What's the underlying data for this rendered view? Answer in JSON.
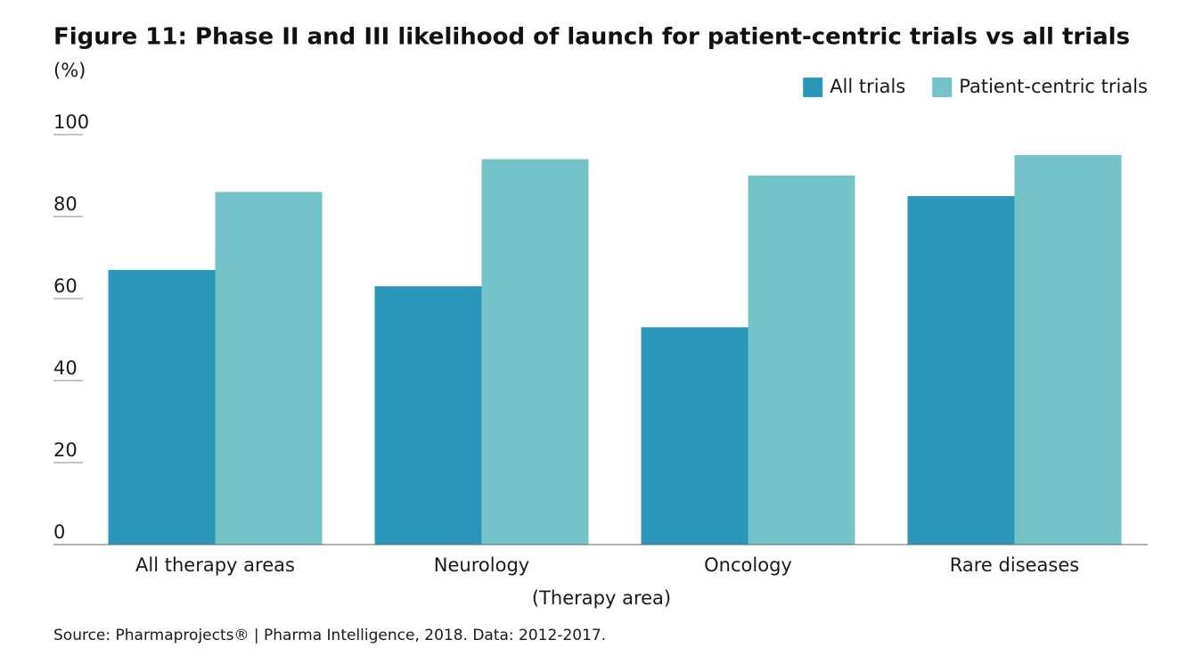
{
  "chart_data": {
    "type": "bar",
    "title": "Figure 11: Phase II and III likelihood of launch for patient-centric trials vs all trials",
    "y_label": "(%)",
    "x_label": "(Therapy area)",
    "source": "Source: Pharmaprojects® | Pharma Intelligence, 2018. Data: 2012-2017.",
    "categories": [
      "All therapy areas",
      "Neurology",
      "Oncology",
      "Rare diseases"
    ],
    "series": [
      {
        "name": "All trials",
        "color": "#2a98bb",
        "values": [
          67,
          63,
          53,
          85
        ]
      },
      {
        "name": "Patient-centric trials",
        "color": "#74c3c9",
        "values": [
          86,
          94,
          90,
          95
        ]
      }
    ],
    "ylim": [
      0,
      100
    ],
    "yticks": [
      0,
      20,
      40,
      60,
      80,
      100
    ],
    "legend": "top-right"
  }
}
